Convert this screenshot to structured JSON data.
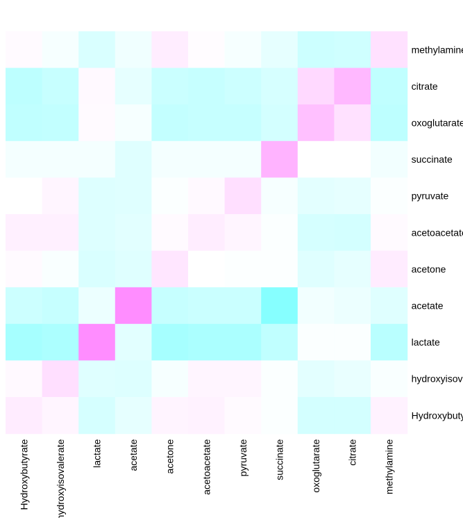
{
  "chart_data": {
    "type": "heatmap",
    "title": "",
    "xlabel": "",
    "ylabel": "",
    "columns": [
      "Hydroxybutyrate",
      "hydroxyisovalerate",
      "lactate",
      "acetate",
      "acetone",
      "acetoacetate",
      "pyruvate",
      "succinate",
      "oxoglutarate",
      "citrate",
      "methylamine"
    ],
    "rows": [
      "methylamine",
      "citrate",
      "oxoglutarate",
      "succinate",
      "pyruvate",
      "acetoacetate",
      "acetone",
      "acetate",
      "lactate",
      "hydroxyisovalerate",
      "Hydroxybutyrate"
    ],
    "color_scale": {
      "negative": "#80ffff",
      "zero": "#ffffff",
      "positive": "#ff80ff",
      "range": [
        -1,
        1
      ]
    },
    "values": [
      [
        0.04,
        -0.07,
        -0.3,
        -0.12,
        0.14,
        0.02,
        -0.07,
        -0.2,
        -0.4,
        -0.38,
        0.24
      ],
      [
        -0.52,
        -0.44,
        0.05,
        -0.2,
        -0.42,
        -0.45,
        -0.4,
        -0.32,
        0.3,
        0.56,
        -0.5
      ],
      [
        -0.5,
        -0.48,
        0.04,
        -0.07,
        -0.47,
        -0.45,
        -0.45,
        -0.35,
        0.5,
        0.24,
        -0.52
      ],
      [
        -0.09,
        -0.09,
        -0.09,
        -0.25,
        -0.09,
        -0.09,
        -0.09,
        0.6,
        0.0,
        0.0,
        -0.1
      ],
      [
        0.0,
        0.08,
        -0.27,
        -0.25,
        -0.03,
        0.05,
        0.25,
        -0.07,
        -0.22,
        -0.2,
        -0.03
      ],
      [
        0.12,
        0.12,
        -0.27,
        -0.23,
        0.04,
        0.14,
        0.08,
        -0.03,
        -0.33,
        -0.35,
        0.04
      ],
      [
        0.04,
        -0.05,
        -0.3,
        -0.25,
        0.2,
        0.0,
        -0.02,
        -0.02,
        -0.25,
        -0.2,
        0.15
      ],
      [
        -0.4,
        -0.45,
        -0.15,
        0.9,
        -0.45,
        -0.42,
        -0.42,
        -0.95,
        -0.1,
        -0.15,
        -0.25
      ],
      [
        -0.7,
        -0.65,
        0.9,
        -0.23,
        -0.7,
        -0.66,
        -0.66,
        -0.5,
        -0.03,
        -0.03,
        -0.55
      ],
      [
        0.05,
        0.25,
        -0.25,
        -0.27,
        -0.07,
        0.08,
        0.08,
        -0.03,
        -0.22,
        -0.17,
        -0.05
      ],
      [
        0.15,
        0.08,
        -0.33,
        -0.2,
        0.09,
        0.1,
        0.04,
        -0.03,
        -0.35,
        -0.35,
        0.1
      ]
    ]
  }
}
